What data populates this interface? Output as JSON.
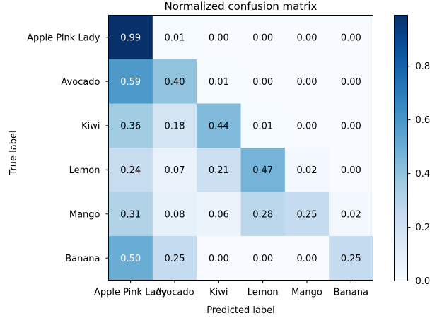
{
  "chart_data": {
    "type": "heatmap",
    "title": "Normalized confusion matrix",
    "xlabel": "Predicted label",
    "ylabel": "True label",
    "x_categories": [
      "Apple Pink Lady",
      "Avocado",
      "Kiwi",
      "Lemon",
      "Mango",
      "Banana"
    ],
    "y_categories": [
      "Apple Pink Lady",
      "Avocado",
      "Kiwi",
      "Lemon",
      "Mango",
      "Banana"
    ],
    "values": [
      [
        0.99,
        0.01,
        0.0,
        0.0,
        0.0,
        0.0
      ],
      [
        0.59,
        0.4,
        0.01,
        0.0,
        0.0,
        0.0
      ],
      [
        0.36,
        0.18,
        0.44,
        0.01,
        0.0,
        0.0
      ],
      [
        0.24,
        0.07,
        0.21,
        0.47,
        0.02,
        0.0
      ],
      [
        0.31,
        0.08,
        0.06,
        0.28,
        0.25,
        0.02
      ],
      [
        0.5,
        0.25,
        0.0,
        0.0,
        0.0,
        0.25
      ]
    ],
    "value_labels": [
      [
        "0.99",
        "0.01",
        "0.00",
        "0.00",
        "0.00",
        "0.00"
      ],
      [
        "0.59",
        "0.40",
        "0.01",
        "0.00",
        "0.00",
        "0.00"
      ],
      [
        "0.36",
        "0.18",
        "0.44",
        "0.01",
        "0.00",
        "0.00"
      ],
      [
        "0.24",
        "0.07",
        "0.21",
        "0.47",
        "0.02",
        "0.00"
      ],
      [
        "0.31",
        "0.08",
        "0.06",
        "0.28",
        "0.25",
        "0.02"
      ],
      [
        "0.50",
        "0.25",
        "0.00",
        "0.00",
        "0.00",
        "0.25"
      ]
    ],
    "colormap": "Blues",
    "vmin": 0.0,
    "vmax": 0.99,
    "colorbar": {
      "ticks": [
        0.0,
        0.2,
        0.4,
        0.6,
        0.8
      ],
      "tick_labels": [
        "0.0",
        "0.2",
        "0.4",
        "0.6",
        "0.8"
      ]
    },
    "grid": false
  }
}
